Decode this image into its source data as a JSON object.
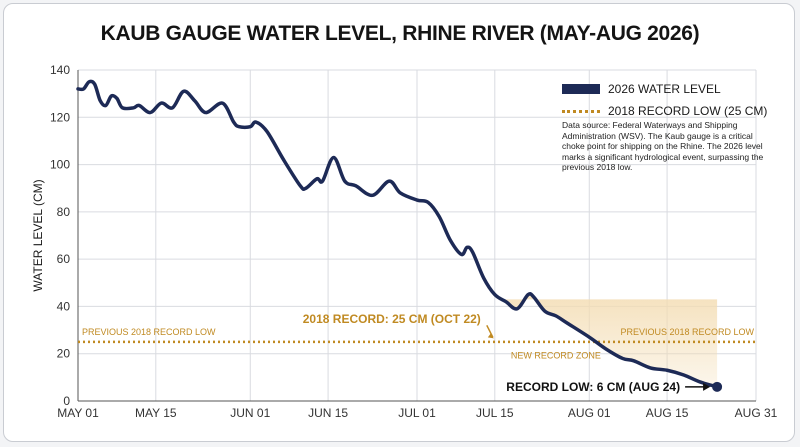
{
  "title": "KAUB GAUGE WATER LEVEL, RHINE RIVER (MAY-AUG 2026)",
  "legend": {
    "series_label": "2026 WATER LEVEL",
    "record_label": "2018 RECORD LOW (25 CM)"
  },
  "note": "Data source: Federal Waterways and Shipping Administration (WSV). The Kaub gauge is a critical choke point for shipping on the Rhine. The 2026 level marks a significant hydrological event, surpassing the previous 2018 low.",
  "colors": {
    "series": "#1d2a56",
    "record": "#c08a22",
    "zone": "#f3dcb2",
    "grid": "#d9dbe0"
  },
  "chart_data": {
    "type": "line",
    "title": "KAUB GAUGE WATER LEVEL, RHINE RIVER (MAY-AUG 2026)",
    "xlabel": "",
    "ylabel": "WATER LEVEL (CM)",
    "ylim": [
      0,
      140
    ],
    "xlim": [
      "2026-05-01",
      "2026-08-31"
    ],
    "yticks": [
      "0",
      "20",
      "40",
      "60",
      "80",
      "100",
      "120",
      "140"
    ],
    "xticks": [
      {
        "label": "MAY 01",
        "date": "2026-05-01"
      },
      {
        "label": "MAY 15",
        "date": "2026-05-15"
      },
      {
        "label": "JUN 01",
        "date": "2026-06-01"
      },
      {
        "label": "JUN 15",
        "date": "2026-06-15"
      },
      {
        "label": "JUL 01",
        "date": "2026-07-01"
      },
      {
        "label": "JUL 15",
        "date": "2026-07-15"
      },
      {
        "label": "AUG 01",
        "date": "2026-08-01"
      },
      {
        "label": "AUG 15",
        "date": "2026-08-15"
      },
      {
        "label": "AUG 31",
        "date": "2026-08-31"
      }
    ],
    "grid": true,
    "series": [
      {
        "name": "2026 WATER LEVEL",
        "points": [
          [
            "2026-05-01",
            132
          ],
          [
            "2026-05-02",
            132
          ],
          [
            "2026-05-03",
            135
          ],
          [
            "2026-05-04",
            134
          ],
          [
            "2026-05-05",
            127
          ],
          [
            "2026-05-06",
            125
          ],
          [
            "2026-05-07",
            129
          ],
          [
            "2026-05-08",
            128
          ],
          [
            "2026-05-09",
            124
          ],
          [
            "2026-05-11",
            124
          ],
          [
            "2026-05-12",
            125
          ],
          [
            "2026-05-14",
            122
          ],
          [
            "2026-05-16",
            126
          ],
          [
            "2026-05-18",
            124
          ],
          [
            "2026-05-20",
            131
          ],
          [
            "2026-05-22",
            127
          ],
          [
            "2026-05-24",
            122
          ],
          [
            "2026-05-27",
            126
          ],
          [
            "2026-05-29",
            118
          ],
          [
            "2026-05-30",
            116
          ],
          [
            "2026-06-01",
            116
          ],
          [
            "2026-06-02",
            118
          ],
          [
            "2026-06-04",
            114
          ],
          [
            "2026-06-07",
            102
          ],
          [
            "2026-06-10",
            91
          ],
          [
            "2026-06-11",
            90
          ],
          [
            "2026-06-13",
            94
          ],
          [
            "2026-06-14",
            93
          ],
          [
            "2026-06-16",
            103
          ],
          [
            "2026-06-18",
            93
          ],
          [
            "2026-06-20",
            91
          ],
          [
            "2026-06-23",
            87
          ],
          [
            "2026-06-26",
            93
          ],
          [
            "2026-06-28",
            88
          ],
          [
            "2026-07-01",
            85
          ],
          [
            "2026-07-03",
            84
          ],
          [
            "2026-07-05",
            78
          ],
          [
            "2026-07-07",
            68
          ],
          [
            "2026-07-09",
            62
          ],
          [
            "2026-07-10",
            65
          ],
          [
            "2026-07-11",
            63
          ],
          [
            "2026-07-13",
            52
          ],
          [
            "2026-07-15",
            45
          ],
          [
            "2026-07-17",
            42
          ],
          [
            "2026-07-19",
            39
          ],
          [
            "2026-07-21",
            45
          ],
          [
            "2026-07-22",
            44
          ],
          [
            "2026-07-24",
            38
          ],
          [
            "2026-07-26",
            36
          ],
          [
            "2026-07-28",
            33
          ],
          [
            "2026-08-01",
            27
          ],
          [
            "2026-08-04",
            22
          ],
          [
            "2026-08-07",
            18
          ],
          [
            "2026-08-09",
            17
          ],
          [
            "2026-08-12",
            14
          ],
          [
            "2026-08-15",
            13
          ],
          [
            "2026-08-18",
            11
          ],
          [
            "2026-08-21",
            8
          ],
          [
            "2026-08-24",
            6
          ]
        ]
      }
    ],
    "reference_line": {
      "name": "2018 RECORD LOW (25 CM)",
      "value": 25,
      "labels": [
        "PREVIOUS 2018 RECORD LOW",
        "PREVIOUS 2018 RECORD LOW"
      ]
    },
    "zone": {
      "label": "NEW RECORD ZONE",
      "start": "2026-07-16",
      "end": "2026-08-24",
      "top": 43
    },
    "annotations": [
      {
        "text": "2018 RECORD: 25 CM (OCT 22)",
        "date": "2026-07-15",
        "value": 25
      },
      {
        "text": "RECORD LOW: 6 CM (AUG 24)",
        "date": "2026-08-24",
        "value": 6
      }
    ]
  }
}
